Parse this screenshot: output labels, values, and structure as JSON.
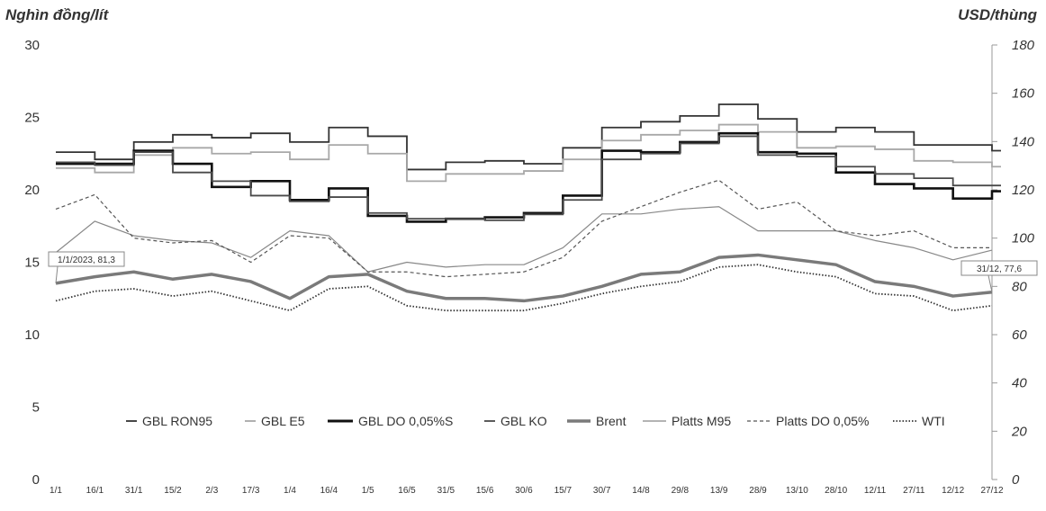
{
  "chart_data": {
    "type": "line",
    "ylabel_left": "Nghìn đồng/lít",
    "ylabel_right": "USD/thùng",
    "ylim_left": [
      0,
      30
    ],
    "ylim_right": [
      0,
      180
    ],
    "yticks_left": [
      "0",
      "5",
      "10",
      "15",
      "20",
      "25",
      "30"
    ],
    "yticks_right": [
      "0",
      "20",
      "40",
      "60",
      "80",
      "100",
      "120",
      "140",
      "160",
      "180"
    ],
    "categories": [
      "1/1",
      "16/1",
      "31/1",
      "15/2",
      "2/3",
      "17/3",
      "1/4",
      "16/4",
      "1/5",
      "16/5",
      "31/5",
      "15/6",
      "30/6",
      "15/7",
      "30/7",
      "14/8",
      "29/8",
      "13/9",
      "28/9",
      "13/10",
      "28/10",
      "12/11",
      "27/11",
      "12/12",
      "27/12"
    ],
    "legend": [
      "GBL RON95",
      "GBL E5",
      "GBL DO 0,05%S",
      "GBL KO",
      "Brent",
      "Platts M95",
      "Platts DO 0,05%",
      "WTI"
    ],
    "annotations": [
      {
        "text": "1/1/2023, 81,3",
        "x": "1/1",
        "y": 81.3
      },
      {
        "text": "31/12, 77,6",
        "x": "27/12",
        "y": 77.6
      }
    ],
    "step_series": [
      {
        "name": "GBL RON95",
        "axis": "left",
        "color": "#333333",
        "values": [
          22.6,
          22.1,
          23.3,
          23.8,
          23.6,
          23.9,
          23.3,
          24.3,
          23.7,
          21.4,
          21.9,
          22.0,
          21.8,
          22.9,
          24.3,
          24.7,
          25.1,
          25.9,
          24.9,
          24.0,
          24.3,
          24.0,
          23.1,
          23.1,
          22.7
        ]
      },
      {
        "name": "GBL E5",
        "axis": "left",
        "color": "#a8a8a8",
        "values": [
          21.5,
          21.2,
          22.4,
          22.9,
          22.5,
          22.6,
          22.1,
          23.1,
          22.5,
          20.6,
          21.1,
          21.1,
          21.3,
          22.1,
          23.4,
          23.8,
          24.1,
          24.5,
          24.0,
          22.9,
          23.0,
          22.8,
          22.0,
          21.9,
          21.6
        ]
      },
      {
        "name": "GBL DO 0,05%S",
        "axis": "left",
        "color": "#111111",
        "values": [
          21.8,
          21.8,
          22.7,
          21.8,
          20.2,
          20.6,
          19.3,
          20.1,
          18.2,
          17.8,
          18.0,
          18.1,
          18.4,
          19.6,
          22.7,
          22.6,
          23.3,
          23.9,
          22.6,
          22.5,
          21.2,
          20.4,
          20.1,
          19.4,
          19.9
        ]
      },
      {
        "name": "GBL KO",
        "axis": "left",
        "color": "#4a4a4a",
        "values": [
          21.9,
          21.7,
          22.6,
          21.2,
          20.6,
          19.6,
          19.2,
          19.5,
          18.4,
          18.0,
          18.0,
          17.9,
          18.3,
          19.3,
          22.1,
          22.5,
          23.2,
          23.7,
          22.4,
          22.3,
          21.6,
          21.1,
          20.8,
          20.3,
          20.3
        ]
      }
    ],
    "line_series": [
      {
        "name": "Brent",
        "axis": "right",
        "color": "#7a7a7a",
        "width": 3.5,
        "dash": "",
        "values": [
          81.3,
          84,
          86,
          83,
          85,
          82,
          75,
          84,
          85,
          78,
          75,
          75,
          74,
          76,
          80,
          85,
          86,
          92,
          93,
          91,
          89,
          82,
          80,
          76,
          77.6
        ]
      },
      {
        "name": "Platts M95",
        "axis": "right",
        "color": "#888888",
        "width": 1.2,
        "dash": "",
        "values": [
          94,
          107,
          101,
          99,
          98,
          92,
          103,
          101,
          86,
          90,
          88,
          89,
          89,
          96,
          110,
          110,
          112,
          113,
          103,
          103,
          103,
          99,
          96,
          91,
          95
        ]
      },
      {
        "name": "Platts DO 0,05%",
        "axis": "right",
        "color": "#555555",
        "width": 1.2,
        "dash": "4,3",
        "values": [
          112,
          118,
          100,
          98,
          99,
          90,
          101,
          100,
          86,
          86,
          84,
          85,
          86,
          92,
          107,
          113,
          119,
          124,
          112,
          115,
          103,
          101,
          103,
          96,
          96
        ]
      },
      {
        "name": "WTI",
        "axis": "right",
        "color": "#333333",
        "width": 1.8,
        "dash": "1.5,2",
        "values": [
          74,
          78,
          79,
          76,
          78,
          74,
          70,
          79,
          80,
          72,
          70,
          70,
          70,
          73,
          77,
          80,
          82,
          88,
          89,
          86,
          84,
          77,
          76,
          70,
          72
        ]
      }
    ]
  }
}
